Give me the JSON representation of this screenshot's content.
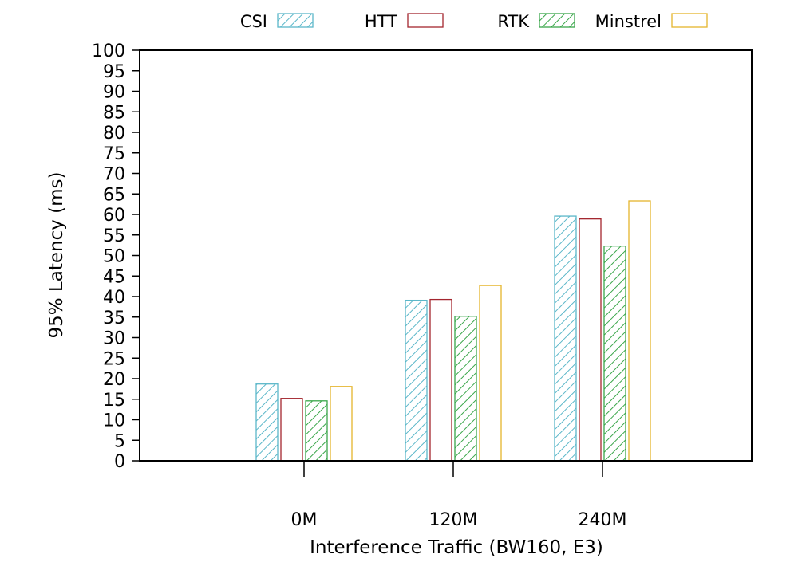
{
  "chart_data": {
    "type": "bar",
    "title": "",
    "xlabel": "Interference Traffic (BW160, E3)",
    "ylabel": "95% Latency (ms)",
    "ylim": [
      0,
      100
    ],
    "ytick_step": 5,
    "grid": false,
    "legend_position": "top",
    "categories": [
      "0M",
      "120M",
      "240M"
    ],
    "series": [
      {
        "name": "CSI",
        "color": "#5bb7c9",
        "pattern": "hatched",
        "values": [
          18.7,
          39.1,
          59.6
        ]
      },
      {
        "name": "HTT",
        "color": "#a3252e",
        "pattern": "outline",
        "values": [
          15.2,
          39.3,
          58.9
        ]
      },
      {
        "name": "RTK",
        "color": "#3aa64a",
        "pattern": "hatched",
        "values": [
          14.6,
          35.2,
          52.3
        ]
      },
      {
        "name": "Minstrel",
        "color": "#e5b52d",
        "pattern": "outline",
        "values": [
          18.1,
          42.7,
          63.3
        ]
      }
    ]
  }
}
